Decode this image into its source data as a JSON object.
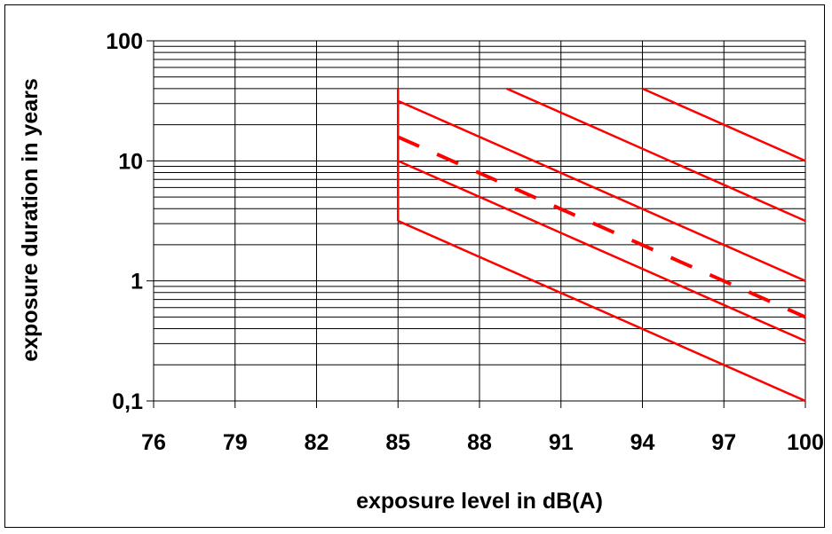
{
  "chart_data": {
    "type": "line",
    "xlabel": "exposure level in dB(A)",
    "ylabel": "exposure duration in years",
    "xlim": [
      76,
      100
    ],
    "ylim": [
      0.1,
      100
    ],
    "y_scale": "log",
    "x_ticks": [
      76,
      79,
      82,
      85,
      88,
      91,
      94,
      97,
      100
    ],
    "x_tick_labels": [
      "76",
      "79",
      "82",
      "85",
      "88",
      "91",
      "94",
      "97",
      "100"
    ],
    "y_ticks": [
      0.1,
      1,
      10,
      100
    ],
    "y_tick_labels": [
      "0,1",
      "1",
      "10",
      "100"
    ],
    "grid": true,
    "legend": "none",
    "colors": {
      "series": "#ff0000",
      "grid": "#000000"
    },
    "series": [
      {
        "x": [
          85,
          100
        ],
        "y": [
          3.16,
          0.1
        ],
        "style": "solid"
      },
      {
        "x": [
          85,
          100
        ],
        "y": [
          10,
          0.316
        ],
        "style": "solid"
      },
      {
        "x": [
          85,
          100
        ],
        "y": [
          15.8,
          0.5
        ],
        "style": "dashed"
      },
      {
        "x": [
          85,
          100
        ],
        "y": [
          31.6,
          1
        ],
        "style": "solid"
      },
      {
        "x": [
          89,
          100
        ],
        "y": [
          40,
          3.16
        ],
        "style": "solid"
      },
      {
        "x": [
          94,
          100
        ],
        "y": [
          40,
          10
        ],
        "style": "solid"
      },
      {
        "x": [
          85,
          85
        ],
        "y": [
          3.16,
          40
        ],
        "style": "solid"
      }
    ]
  }
}
